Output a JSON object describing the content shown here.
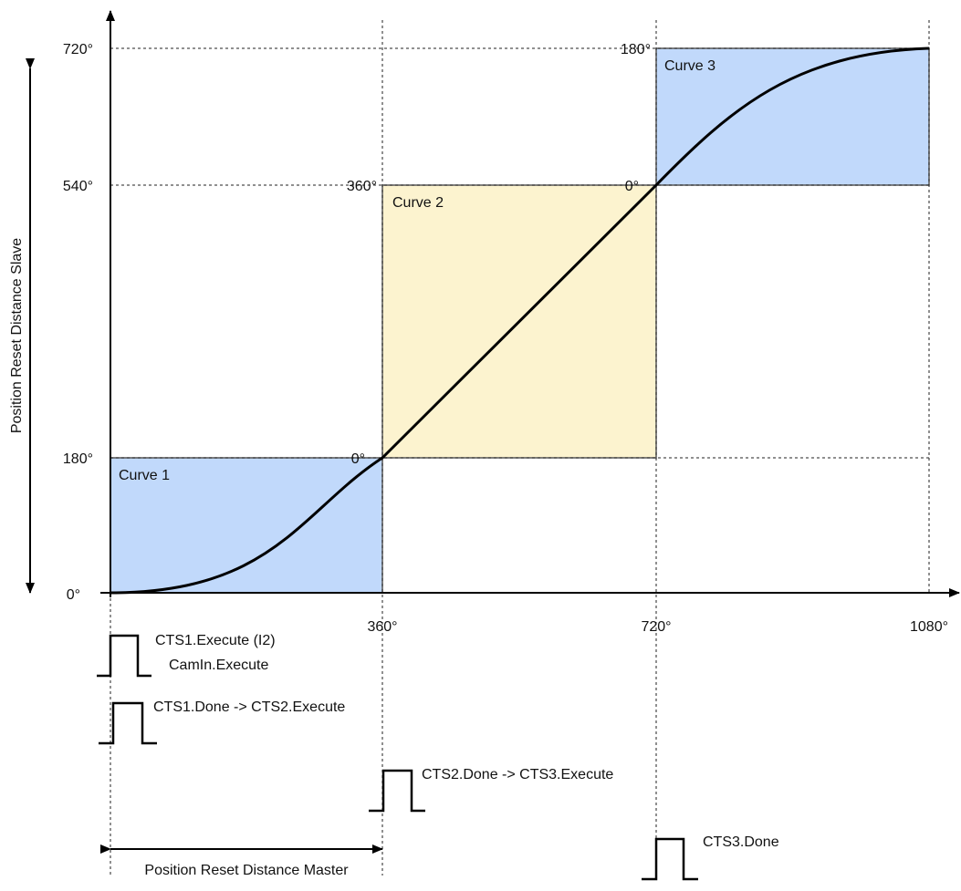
{
  "colors": {
    "blue_box": "#c1d9fb",
    "yellow_box": "#fcf3cf",
    "line": "#000000"
  },
  "y_axis": {
    "label": "Position Reset Distance Slave",
    "ticks": [
      "0°",
      "180°",
      "540°",
      "720°"
    ]
  },
  "x_axis": {
    "ticks": [
      "360°",
      "720°",
      "1080°"
    ]
  },
  "curves": [
    {
      "name": "Curve 1",
      "start_label": "",
      "end_label": "0°",
      "color": "blue"
    },
    {
      "name": "Curve 2",
      "start_label": "0°",
      "end_label": "360°",
      "color": "yellow"
    },
    {
      "name": "Curve 3",
      "start_label": "0°",
      "end_label": "180°",
      "color": "blue"
    }
  ],
  "signals": [
    {
      "line1": "CTS1.Execute (I2)",
      "line2": "CamIn.Execute"
    },
    {
      "line1": "CTS1.Done -> CTS2.Execute"
    },
    {
      "line1": "CTS2.Done -> CTS3.Execute"
    },
    {
      "line1": "CTS3.Done"
    }
  ],
  "master_distance_label": "Position Reset Distance Master"
}
